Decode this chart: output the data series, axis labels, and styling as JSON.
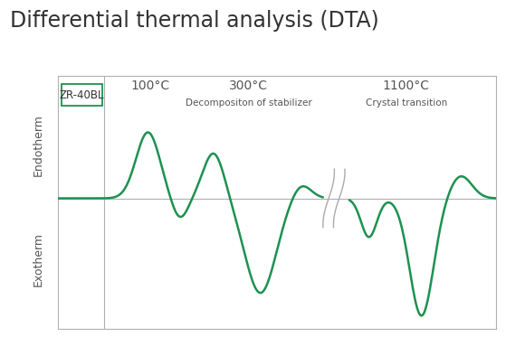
{
  "title": "Differential thermal analysis (DTA)",
  "title_fontsize": 17,
  "label_zr": "ZR-40BL",
  "ylabel_endotherm": "Endotherm",
  "ylabel_exotherm": "Exotherm",
  "ann_100": "100°C",
  "ann_300": "300°C",
  "ann_300_sub": "Decompositon of stabilizer",
  "ann_1100": "1100°C",
  "ann_1100_sub": "Crystal transition",
  "line_color": "#1e9150",
  "baseline_color": "#b0b0b0",
  "axis_color": "#b0b0b0",
  "background_color": "#ffffff",
  "break_color": "#aaaaaa",
  "text_color": "#555555",
  "title_color": "#333333"
}
